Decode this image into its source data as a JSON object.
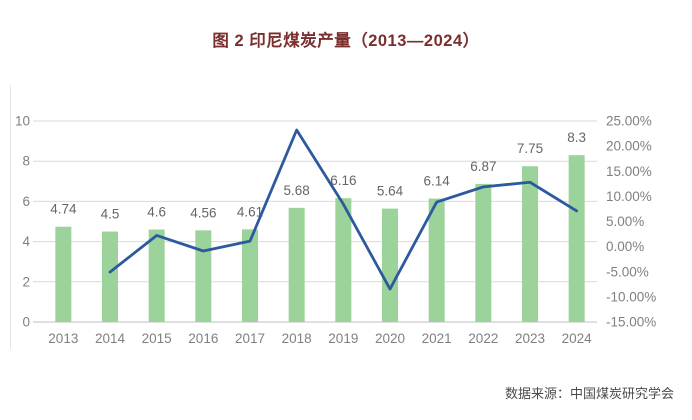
{
  "title": "图 2 印尼煤炭产量（2013—2024）",
  "source": "数据来源：中国煤炭研究学会",
  "colors": {
    "title": "#7A2E2E",
    "bar": "#9BD39A",
    "line": "#2D5A9E",
    "grid": "#D9D9D9",
    "axis_line": "#C2C2C2",
    "axis_text": "#808080",
    "data_label": "#666666",
    "source_text": "#4A4A4A",
    "frame_border": "#E4E4E4"
  },
  "chart_data": {
    "type": "combo-bar-line",
    "title": "图 2 印尼煤炭产量（2013—2024）",
    "categories": [
      "2013",
      "2014",
      "2015",
      "2016",
      "2017",
      "2018",
      "2019",
      "2020",
      "2021",
      "2022",
      "2023",
      "2024"
    ],
    "series": [
      {
        "id": "production-bars",
        "type": "bar",
        "axis": "left",
        "values": [
          4.74,
          4.5,
          4.6,
          4.56,
          4.61,
          5.68,
          6.16,
          5.64,
          6.14,
          6.87,
          7.75,
          8.3
        ],
        "labels": [
          "4.74",
          "4.5",
          "4.6",
          "4.56",
          "4.61",
          "5.68",
          "6.16",
          "5.64",
          "6.14",
          "6.87",
          "7.75",
          "8.3"
        ]
      },
      {
        "id": "growth-rate-line",
        "type": "line",
        "axis": "right",
        "values": [
          null,
          -5.06,
          2.22,
          -0.87,
          1.1,
          23.21,
          8.45,
          -8.44,
          8.87,
          11.89,
          12.81,
          7.1
        ]
      }
    ],
    "left_axis": {
      "min": 0,
      "max": 10,
      "ticks": [
        "0",
        "2",
        "4",
        "6",
        "8",
        "10"
      ]
    },
    "right_axis": {
      "min": -15,
      "max": 25,
      "ticks": [
        "-15.00%",
        "-10.00%",
        "-5.00%",
        "0.00%",
        "5.00%",
        "10.00%",
        "15.00%",
        "20.00%",
        "25.00%"
      ]
    },
    "grid": true,
    "legend": "none",
    "xlabel": "",
    "ylabel": ""
  }
}
